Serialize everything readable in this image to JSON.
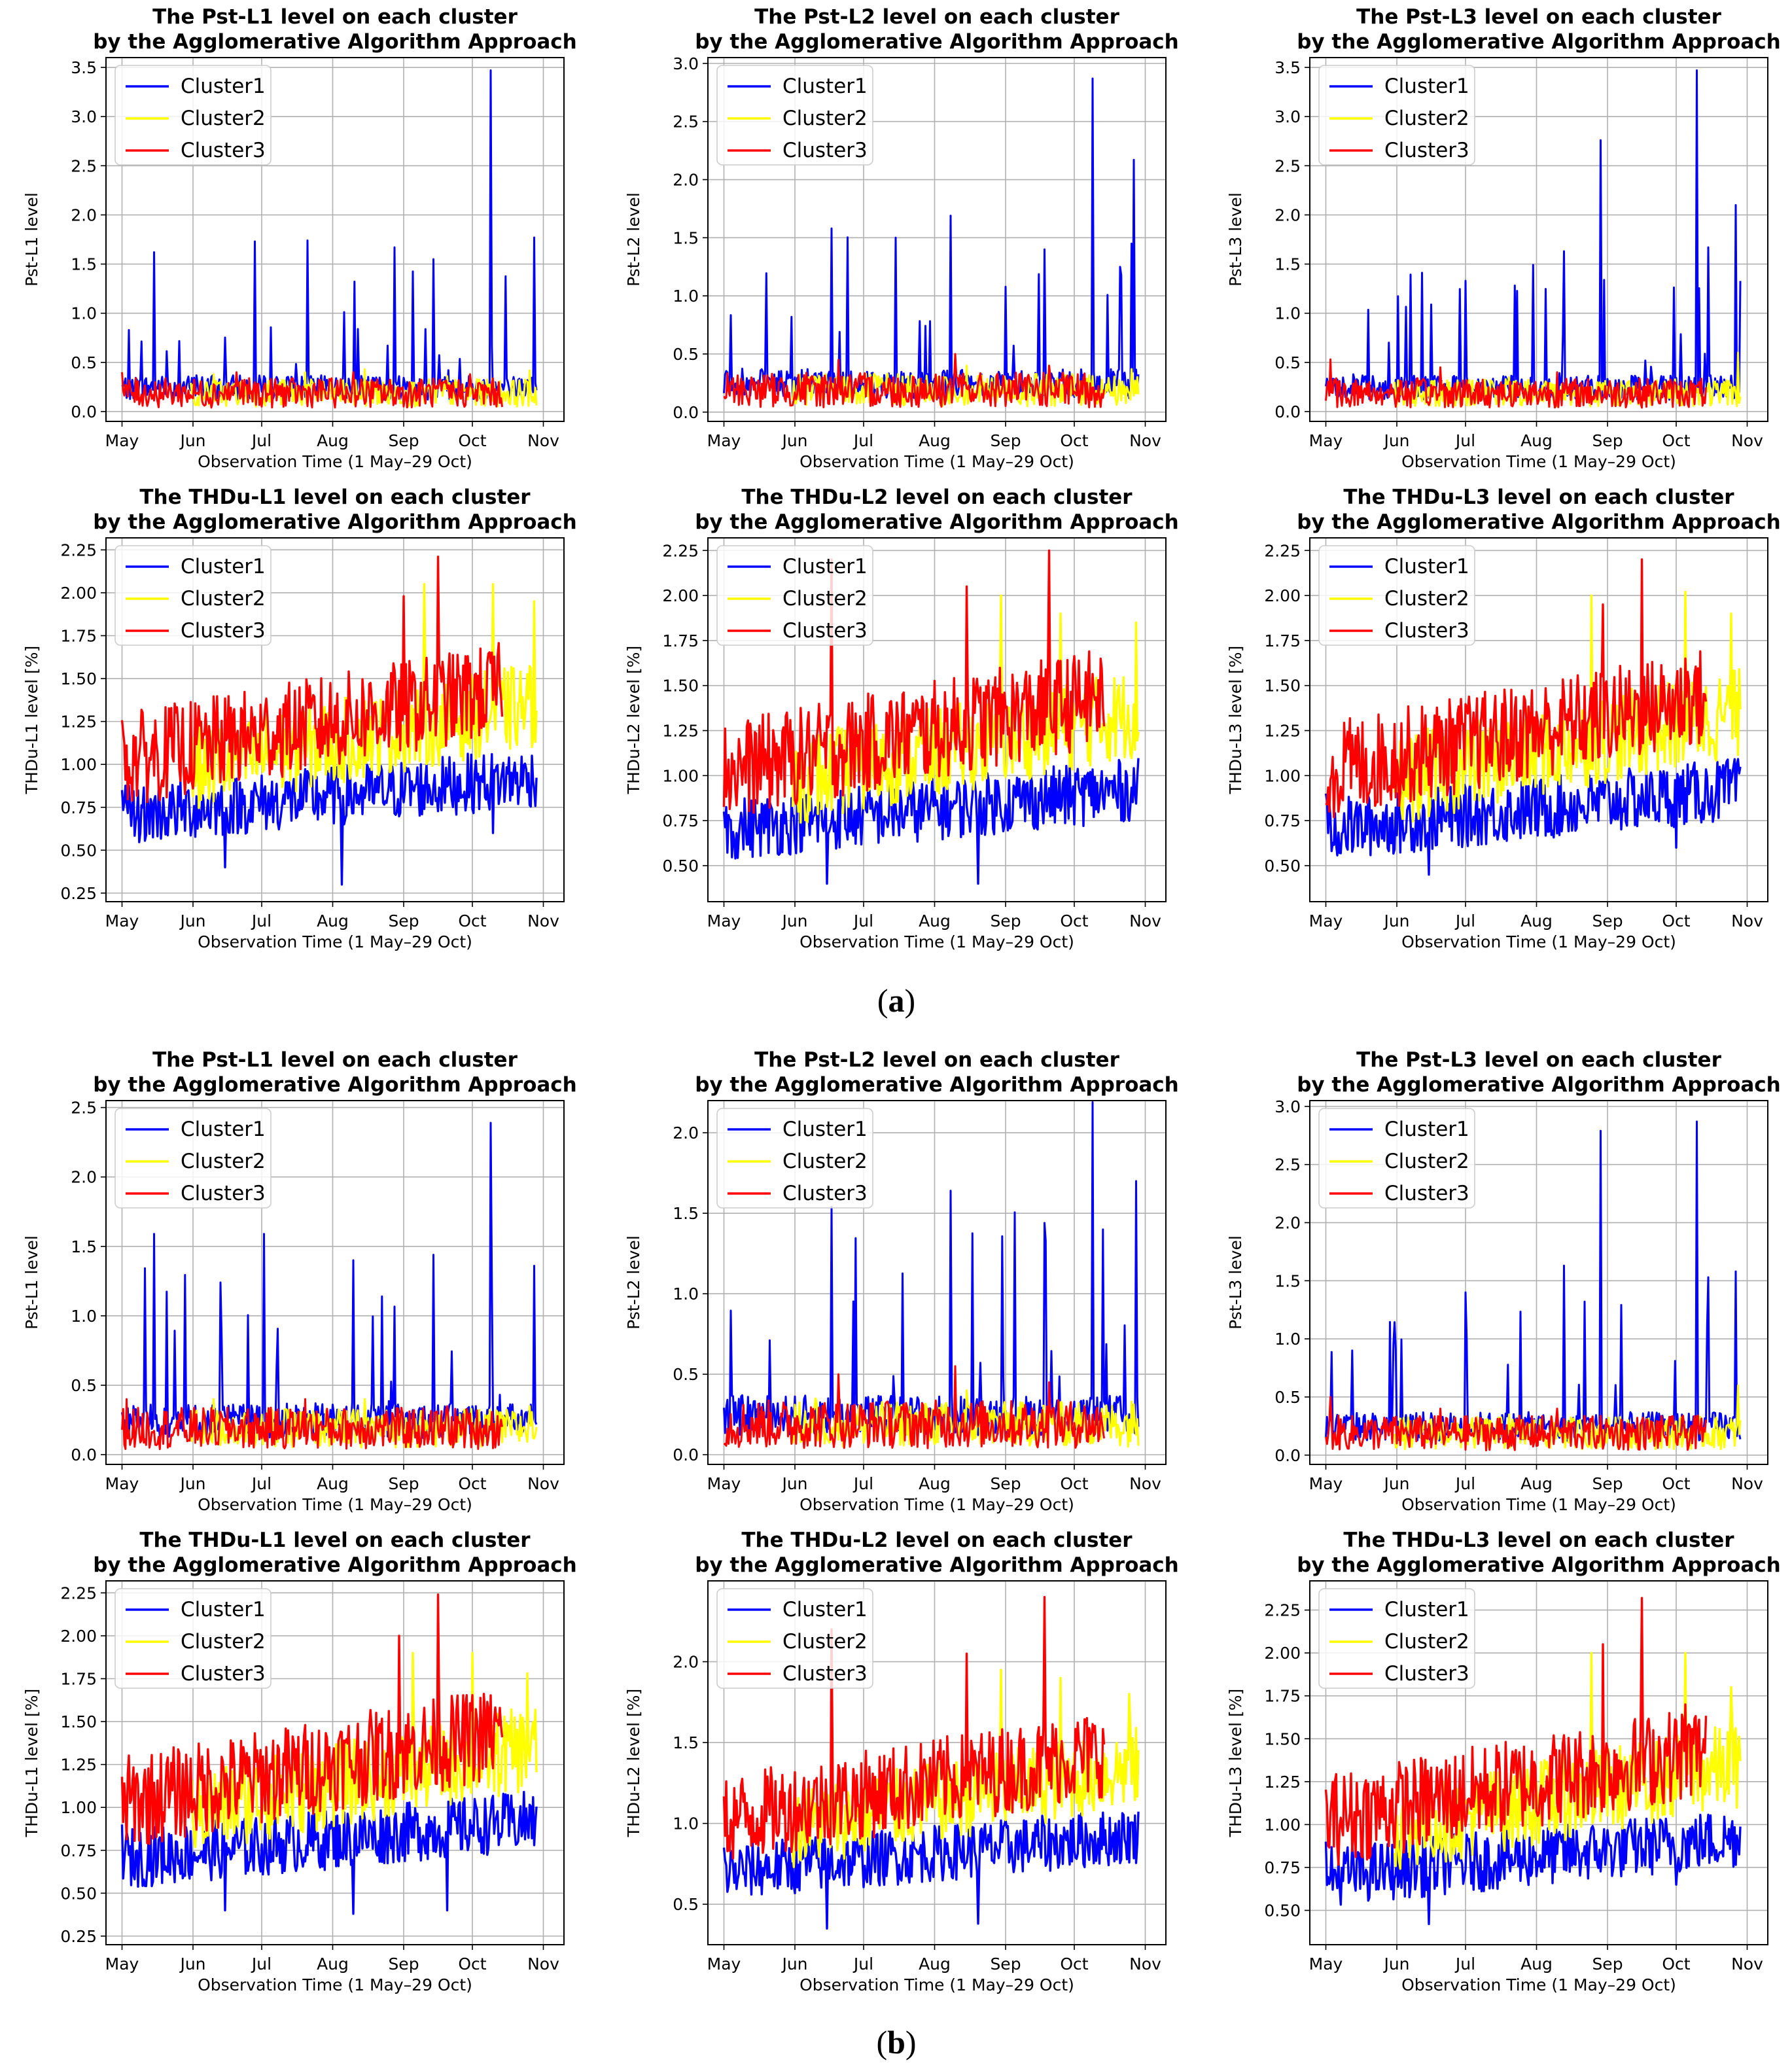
{
  "panel_labels": [
    "a",
    "b"
  ],
  "month_ticks": [
    "May",
    "Jun",
    "Jul",
    "Aug",
    "Sep",
    "Oct",
    "Nov"
  ],
  "xlabel": "Observation Time (1 May–29 Oct)",
  "legend": [
    "Cluster1",
    "Cluster2",
    "Cluster3"
  ],
  "colors": {
    "Cluster1": "#0000ff",
    "Cluster2": "#ffff00",
    "Cluster3": "#ff0000"
  },
  "chart_data": [
    {
      "type": "line",
      "panel": "a",
      "title": "The Pst-L1 level on each cluster",
      "subtitle": "by the Agglomerative Algorithm Approach",
      "ylabel": "Pst-L1 level",
      "ylim": [
        -0.1,
        3.6
      ],
      "yticks": [
        "0.0",
        "0.5",
        "1.0",
        "1.5",
        "2.0",
        "2.5",
        "3.0",
        "3.5"
      ],
      "legend_position": "upper-left",
      "grid": true,
      "series": [
        {
          "name": "Cluster1",
          "x": [
            "May 15",
            "Jun 28",
            "Jul 21",
            "Aug 28",
            "Sep 14",
            "Oct 09",
            "Oct 28"
          ],
          "values": [
            1.62,
            1.73,
            1.74,
            1.67,
            1.55,
            3.47,
            1.77
          ]
        },
        {
          "name": "Cluster2",
          "x": [
            "Jun 10",
            "Jul 20",
            "Aug 15",
            "Sep 20",
            "Oct 26"
          ],
          "values": [
            0.38,
            0.4,
            0.43,
            0.36,
            0.42
          ]
        },
        {
          "name": "Cluster3",
          "x": [
            "May 01",
            "Jun 20",
            "Aug 10",
            "Sep 30"
          ],
          "values": [
            0.4,
            0.4,
            0.4,
            0.38
          ]
        }
      ]
    },
    {
      "type": "line",
      "panel": "a",
      "title": "The Pst-L2 level on each cluster",
      "subtitle": "by the Agglomerative Algorithm Approach",
      "ylabel": "Pst-L2 level",
      "ylim": [
        -0.08,
        3.05
      ],
      "yticks": [
        "0.0",
        "0.5",
        "1.0",
        "1.5",
        "2.0",
        "2.5",
        "3.0"
      ],
      "legend_position": "upper-left",
      "grid": true,
      "series": [
        {
          "name": "Cluster1",
          "x": [
            "Jun 17",
            "Jul 15",
            "Aug 08",
            "Sep 18",
            "Oct 09",
            "Oct 27"
          ],
          "values": [
            1.58,
            1.5,
            1.69,
            1.4,
            2.87,
            2.17
          ]
        },
        {
          "name": "Cluster2",
          "x": [
            "Jun 10",
            "Aug 15",
            "Oct 26"
          ],
          "values": [
            0.3,
            0.4,
            0.37
          ]
        },
        {
          "name": "Cluster3",
          "x": [
            "Jun 20",
            "Aug 10",
            "Sep 20"
          ],
          "values": [
            0.45,
            0.5,
            0.4
          ]
        }
      ]
    },
    {
      "type": "line",
      "panel": "a",
      "title": "The Pst-L3 level on each cluster",
      "subtitle": "by the Agglomerative Algorithm Approach",
      "ylabel": "Pst-L3 level",
      "ylim": [
        -0.1,
        3.6
      ],
      "yticks": [
        "0.0",
        "0.5",
        "1.0",
        "1.5",
        "2.0",
        "2.5",
        "3.0",
        "3.5"
      ],
      "legend_position": "upper-left",
      "grid": true,
      "series": [
        {
          "name": "Cluster1",
          "x": [
            "Jul 01",
            "Aug 13",
            "Aug 29",
            "Oct 10",
            "Oct 15",
            "Oct 27"
          ],
          "values": [
            1.33,
            1.63,
            2.76,
            3.47,
            1.67,
            2.1
          ]
        },
        {
          "name": "Cluster2",
          "x": [
            "Jul 20",
            "Sep 10",
            "Oct 28"
          ],
          "values": [
            0.35,
            0.3,
            0.6
          ]
        },
        {
          "name": "Cluster3",
          "x": [
            "May 03",
            "Jun 20",
            "Aug 10"
          ],
          "values": [
            0.53,
            0.45,
            0.4
          ]
        }
      ]
    },
    {
      "type": "line",
      "panel": "a",
      "title": "The THDu-L1 level on each cluster",
      "subtitle": "by the Agglomerative Algorithm Approach",
      "ylabel": "THDu-L1 level [%]",
      "ylim": [
        0.2,
        2.32
      ],
      "yticks": [
        "0.25",
        "0.50",
        "0.75",
        "1.00",
        "1.25",
        "1.50",
        "1.75",
        "2.00",
        "2.25"
      ],
      "legend_position": "upper-left",
      "grid": true,
      "series": [
        {
          "name": "Cluster1",
          "x": [
            "May 01",
            "Jun 15",
            "Aug 05",
            "Oct 10"
          ],
          "values": [
            0.85,
            0.4,
            0.3,
            0.6
          ]
        },
        {
          "name": "Cluster2",
          "x": [
            "Sep 10",
            "Oct 10",
            "Oct 28"
          ],
          "values": [
            2.05,
            2.05,
            1.95
          ]
        },
        {
          "name": "Cluster3",
          "x": [
            "Sep 01",
            "Sep 16",
            "Oct 15"
          ],
          "values": [
            1.98,
            2.21,
            1.5
          ]
        }
      ]
    },
    {
      "type": "line",
      "panel": "a",
      "title": "The THDu-L2 level on each cluster",
      "subtitle": "by the Agglomerative Algorithm Approach",
      "ylabel": "THDu-L2 level [%]",
      "ylim": [
        0.3,
        2.32
      ],
      "yticks": [
        "0.50",
        "0.75",
        "1.00",
        "1.25",
        "1.50",
        "1.75",
        "2.00",
        "2.25"
      ],
      "legend_position": "upper-left",
      "grid": true,
      "series": [
        {
          "name": "Cluster1",
          "x": [
            "May 01",
            "Jun 15",
            "Aug 20"
          ],
          "values": [
            0.8,
            0.4,
            0.4
          ]
        },
        {
          "name": "Cluster2",
          "x": [
            "Aug 30",
            "Sep 25",
            "Oct 28"
          ],
          "values": [
            2.0,
            1.9,
            1.85
          ]
        },
        {
          "name": "Cluster3",
          "x": [
            "Jun 17",
            "Aug 15",
            "Sep 20"
          ],
          "values": [
            2.2,
            2.05,
            2.25
          ]
        }
      ]
    },
    {
      "type": "line",
      "panel": "a",
      "title": "The THDu-L3 level on each cluster",
      "subtitle": "by the Agglomerative Algorithm Approach",
      "ylabel": "THDu-L3 level [%]",
      "ylim": [
        0.3,
        2.32
      ],
      "yticks": [
        "0.50",
        "0.75",
        "1.00",
        "1.25",
        "1.50",
        "1.75",
        "2.00",
        "2.25"
      ],
      "legend_position": "upper-left",
      "grid": true,
      "series": [
        {
          "name": "Cluster1",
          "x": [
            "May 01",
            "Jun 15",
            "Oct 01"
          ],
          "values": [
            0.9,
            0.45,
            0.6
          ]
        },
        {
          "name": "Cluster2",
          "x": [
            "Aug 25",
            "Oct 05",
            "Oct 25"
          ],
          "values": [
            2.0,
            2.02,
            1.9
          ]
        },
        {
          "name": "Cluster3",
          "x": [
            "Aug 30",
            "Sep 16",
            "Oct 05"
          ],
          "values": [
            1.95,
            2.2,
            1.65
          ]
        }
      ]
    },
    {
      "type": "line",
      "panel": "b",
      "title": "The Pst-L1 level on each cluster",
      "subtitle": "by the Agglomerative Algorithm Approach",
      "ylabel": "Pst-L1 level",
      "ylim": [
        -0.07,
        2.55
      ],
      "yticks": [
        "0.0",
        "0.5",
        "1.0",
        "1.5",
        "2.0",
        "2.5"
      ],
      "legend_position": "upper-left",
      "grid": true,
      "series": [
        {
          "name": "Cluster1",
          "x": [
            "May 15",
            "Jul 02",
            "Aug 10",
            "Sep 14",
            "Oct 09",
            "Oct 28"
          ],
          "values": [
            1.59,
            1.59,
            1.4,
            1.44,
            2.39,
            1.36
          ]
        },
        {
          "name": "Cluster2",
          "x": [
            "Jun 10",
            "Aug 15",
            "Oct 26"
          ],
          "values": [
            0.4,
            0.4,
            0.35
          ]
        },
        {
          "name": "Cluster3",
          "x": [
            "May 03",
            "Jul 20",
            "Sep 20"
          ],
          "values": [
            0.4,
            0.4,
            0.35
          ]
        }
      ]
    },
    {
      "type": "line",
      "panel": "b",
      "title": "The Pst-L2 level on each cluster",
      "subtitle": "by the Agglomerative Algorithm Approach",
      "ylabel": "Pst-L2 level",
      "ylim": [
        -0.06,
        2.2
      ],
      "yticks": [
        "0.0",
        "0.5",
        "1.0",
        "1.5",
        "2.0"
      ],
      "legend_position": "upper-left",
      "grid": true,
      "series": [
        {
          "name": "Cluster1",
          "x": [
            "Jun 17",
            "Aug 08",
            "Sep 18",
            "Oct 09",
            "Oct 28"
          ],
          "values": [
            1.54,
            1.64,
            1.44,
            2.19,
            1.7
          ]
        },
        {
          "name": "Cluster2",
          "x": [
            "Jun 10",
            "Aug 15",
            "Oct 26"
          ],
          "values": [
            0.35,
            0.4,
            0.33
          ]
        },
        {
          "name": "Cluster3",
          "x": [
            "Jun 20",
            "Aug 10",
            "Sep 20"
          ],
          "values": [
            0.5,
            0.55,
            0.45
          ]
        }
      ]
    },
    {
      "type": "line",
      "panel": "b",
      "title": "The Pst-L3 level on each cluster",
      "subtitle": "by the Agglomerative Algorithm Approach",
      "ylabel": "Pst-L3 level",
      "ylim": [
        -0.08,
        3.05
      ],
      "yticks": [
        "0.0",
        "0.5",
        "1.0",
        "1.5",
        "2.0",
        "2.5",
        "3.0"
      ],
      "legend_position": "upper-left",
      "grid": true,
      "series": [
        {
          "name": "Cluster1",
          "x": [
            "Jul 01",
            "Aug 13",
            "Aug 29",
            "Oct 10",
            "Oct 15",
            "Oct 27"
          ],
          "values": [
            1.4,
            1.63,
            2.79,
            2.87,
            1.53,
            1.58
          ]
        },
        {
          "name": "Cluster2",
          "x": [
            "Jul 20",
            "Sep 10",
            "Oct 28"
          ],
          "values": [
            0.35,
            0.3,
            0.6
          ]
        },
        {
          "name": "Cluster3",
          "x": [
            "May 03",
            "Jun 20",
            "Aug 10"
          ],
          "values": [
            0.5,
            0.4,
            0.4
          ]
        }
      ]
    },
    {
      "type": "line",
      "panel": "b",
      "title": "The THDu-L1 level on each cluster",
      "subtitle": "by the Agglomerative Algorithm Approach",
      "ylabel": "THDu-L1 level [%]",
      "ylim": [
        0.2,
        2.32
      ],
      "yticks": [
        "0.25",
        "0.50",
        "0.75",
        "1.00",
        "1.25",
        "1.50",
        "1.75",
        "2.00",
        "2.25"
      ],
      "legend_position": "upper-left",
      "grid": true,
      "series": [
        {
          "name": "Cluster1",
          "x": [
            "May 01",
            "Jun 15",
            "Aug 10",
            "Sep 20"
          ],
          "values": [
            0.9,
            0.4,
            0.38,
            0.4
          ]
        },
        {
          "name": "Cluster2",
          "x": [
            "Sep 05",
            "Oct 01",
            "Oct 25"
          ],
          "values": [
            1.9,
            1.9,
            1.78
          ]
        },
        {
          "name": "Cluster3",
          "x": [
            "Aug 30",
            "Sep 16",
            "Oct 15"
          ],
          "values": [
            2.0,
            2.24,
            1.5
          ]
        }
      ]
    },
    {
      "type": "line",
      "panel": "b",
      "title": "The THDu-L2 level on each cluster",
      "subtitle": "by the Agglomerative Algorithm Approach",
      "ylabel": "THDu-L2 level [%]",
      "ylim": [
        0.25,
        2.5
      ],
      "yticks": [
        "0.5",
        "1.0",
        "1.5",
        "2.0"
      ],
      "legend_position": "upper-left",
      "grid": true,
      "series": [
        {
          "name": "Cluster1",
          "x": [
            "May 01",
            "Jun 15",
            "Aug 20"
          ],
          "values": [
            0.85,
            0.35,
            0.38
          ]
        },
        {
          "name": "Cluster2",
          "x": [
            "Aug 30",
            "Sep 25",
            "Oct 25"
          ],
          "values": [
            1.95,
            1.9,
            1.8
          ]
        },
        {
          "name": "Cluster3",
          "x": [
            "Jun 17",
            "Aug 15",
            "Sep 18"
          ],
          "values": [
            2.2,
            2.05,
            2.4
          ]
        }
      ]
    },
    {
      "type": "line",
      "panel": "b",
      "title": "The THDu-L3 level on each cluster",
      "subtitle": "by the Agglomerative Algorithm Approach",
      "ylabel": "THDu-L3 level [%]",
      "ylim": [
        0.3,
        2.42
      ],
      "yticks": [
        "0.50",
        "0.75",
        "1.00",
        "1.25",
        "1.50",
        "1.75",
        "2.00",
        "2.25"
      ],
      "legend_position": "upper-left",
      "grid": true,
      "series": [
        {
          "name": "Cluster1",
          "x": [
            "May 01",
            "Jun 15",
            "Oct 01"
          ],
          "values": [
            0.9,
            0.42,
            0.65
          ]
        },
        {
          "name": "Cluster2",
          "x": [
            "Aug 25",
            "Oct 05",
            "Oct 25"
          ],
          "values": [
            2.0,
            2.0,
            1.8
          ]
        },
        {
          "name": "Cluster3",
          "x": [
            "Aug 30",
            "Sep 16",
            "Oct 05"
          ],
          "values": [
            2.05,
            2.32,
            1.7
          ]
        }
      ]
    }
  ]
}
